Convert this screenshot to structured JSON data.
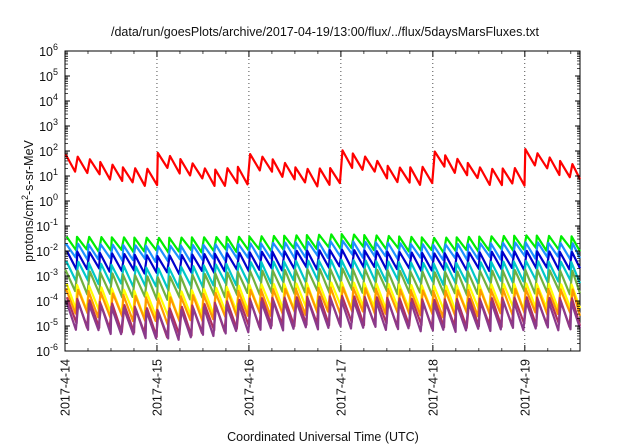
{
  "chart_data": {
    "type": "line",
    "title": "/data/run/goesPlots/archive/2017-04-19/13:00/flux/../flux/5daysMarsFluxes.txt",
    "xlabel": "Coordinated Universal Time (UTC)",
    "ylabel": {
      "base": "protons/cm",
      "sup": "2",
      "rest": "-s-sr-MeV"
    },
    "yscale": "log",
    "ylim": [
      1e-06,
      1000000.0
    ],
    "xlim": [
      0,
      5.6
    ],
    "y_ticks": [
      {
        "base": "10",
        "exp": "-6",
        "v": -6
      },
      {
        "base": "10",
        "exp": "-5",
        "v": -5
      },
      {
        "base": "10",
        "exp": "-4",
        "v": -4
      },
      {
        "base": "10",
        "exp": "-3",
        "v": -3
      },
      {
        "base": "10",
        "exp": "-2",
        "v": -2
      },
      {
        "base": "10",
        "exp": "-1",
        "v": -1
      },
      {
        "base": "10",
        "exp": "0",
        "v": 0
      },
      {
        "base": "10",
        "exp": "1",
        "v": 1
      },
      {
        "base": "10",
        "exp": "2",
        "v": 2
      },
      {
        "base": "10",
        "exp": "3",
        "v": 3
      },
      {
        "base": "10",
        "exp": "4",
        "v": 4
      },
      {
        "base": "10",
        "exp": "5",
        "v": 5
      },
      {
        "base": "10",
        "exp": "6",
        "v": 6
      }
    ],
    "x_ticks": [
      {
        "label": "2017-4-14",
        "x": 0
      },
      {
        "label": "2017-4-15",
        "x": 1
      },
      {
        "label": "2017-4-16",
        "x": 2
      },
      {
        "label": "2017-4-17",
        "x": 3
      },
      {
        "label": "2017-4-18",
        "x": 4
      },
      {
        "label": "2017-4-19",
        "x": 5
      }
    ],
    "grid": {
      "vertical": true,
      "style": "dotted"
    },
    "series_style": {
      "period_days": 0.125,
      "decay_days": 0.11
    },
    "series": [
      {
        "color": "#ff0000",
        "anchors_x": [
          0,
          0.3,
          0.65,
          0.95,
          1.0,
          1.3,
          1.55,
          1.9,
          2.0,
          2.3,
          2.55,
          2.95,
          3.0,
          3.3,
          3.55,
          3.95,
          4.0,
          4.3,
          4.55,
          4.95,
          5.0,
          5.3,
          5.6
        ],
        "anchors_log": [
          1.55,
          1.3,
          1.0,
          0.95,
          1.6,
          1.3,
          0.9,
          1.05,
          1.55,
          1.3,
          0.95,
          1.0,
          1.7,
          1.4,
          1.0,
          1.05,
          1.65,
          1.3,
          0.95,
          1.0,
          1.75,
          1.35,
          1.05
        ],
        "amp": 0.65
      },
      {
        "color": "#00ee00",
        "anchors_x": [
          0,
          1.0,
          2.0,
          3.0,
          4.0,
          5.0,
          5.6
        ],
        "anchors_log": [
          -1.7,
          -1.75,
          -1.7,
          -1.6,
          -1.75,
          -1.65,
          -1.7
        ],
        "amp": 0.55
      },
      {
        "color": "#1e90ff",
        "anchors_x": [
          0,
          1.0,
          2.0,
          3.0,
          4.0,
          5.0,
          5.6
        ],
        "anchors_log": [
          -2.0,
          -2.1,
          -2.0,
          -1.9,
          -2.05,
          -1.95,
          -2.0
        ],
        "amp": 0.6
      },
      {
        "color": "#0000cc",
        "anchors_x": [
          0,
          1.0,
          2.0,
          3.0,
          4.0,
          5.0,
          5.6
        ],
        "anchors_log": [
          -2.35,
          -2.55,
          -2.4,
          -2.3,
          -2.45,
          -2.35,
          -2.4
        ],
        "amp": 0.7
      },
      {
        "color": "#00c8c8",
        "anchors_x": [
          0,
          1.0,
          2.0,
          3.0,
          4.0,
          5.0,
          5.6
        ],
        "anchors_log": [
          -2.8,
          -3.1,
          -2.85,
          -2.75,
          -2.9,
          -2.8,
          -2.85
        ],
        "amp": 0.8
      },
      {
        "color": "#70b040",
        "anchors_x": [
          0,
          1.0,
          2.0,
          3.0,
          4.0,
          5.0,
          5.6
        ],
        "anchors_log": [
          -3.2,
          -3.5,
          -3.25,
          -3.15,
          -3.3,
          -3.2,
          -3.25
        ],
        "amp": 0.9
      },
      {
        "color": "#ffff00",
        "anchors_x": [
          0,
          1.0,
          2.0,
          3.0,
          4.0,
          5.0,
          5.6
        ],
        "anchors_log": [
          -3.8,
          -4.2,
          -3.85,
          -3.75,
          -3.9,
          -3.8,
          -3.85
        ],
        "amp": 1.0
      },
      {
        "color": "#ff9900",
        "anchors_x": [
          0,
          1.0,
          2.0,
          3.0,
          4.0,
          5.0,
          5.6
        ],
        "anchors_log": [
          -4.0,
          -4.4,
          -4.05,
          -3.95,
          -4.1,
          -4.0,
          -4.05
        ],
        "amp": 1.0
      },
      {
        "color": "#b03060",
        "anchors_x": [
          0,
          1.0,
          2.0,
          3.0,
          4.0,
          5.0,
          5.6
        ],
        "anchors_log": [
          -4.4,
          -4.9,
          -4.45,
          -4.35,
          -4.5,
          -4.4,
          -4.45
        ],
        "amp": 1.1
      },
      {
        "color": "#8b3a8b",
        "anchors_x": [
          0,
          1.0,
          2.0,
          3.0,
          4.0,
          5.0,
          5.6
        ],
        "anchors_log": [
          -4.55,
          -5.0,
          -4.6,
          -4.5,
          -4.65,
          -4.55,
          -4.6
        ],
        "amp": 1.1
      }
    ]
  }
}
